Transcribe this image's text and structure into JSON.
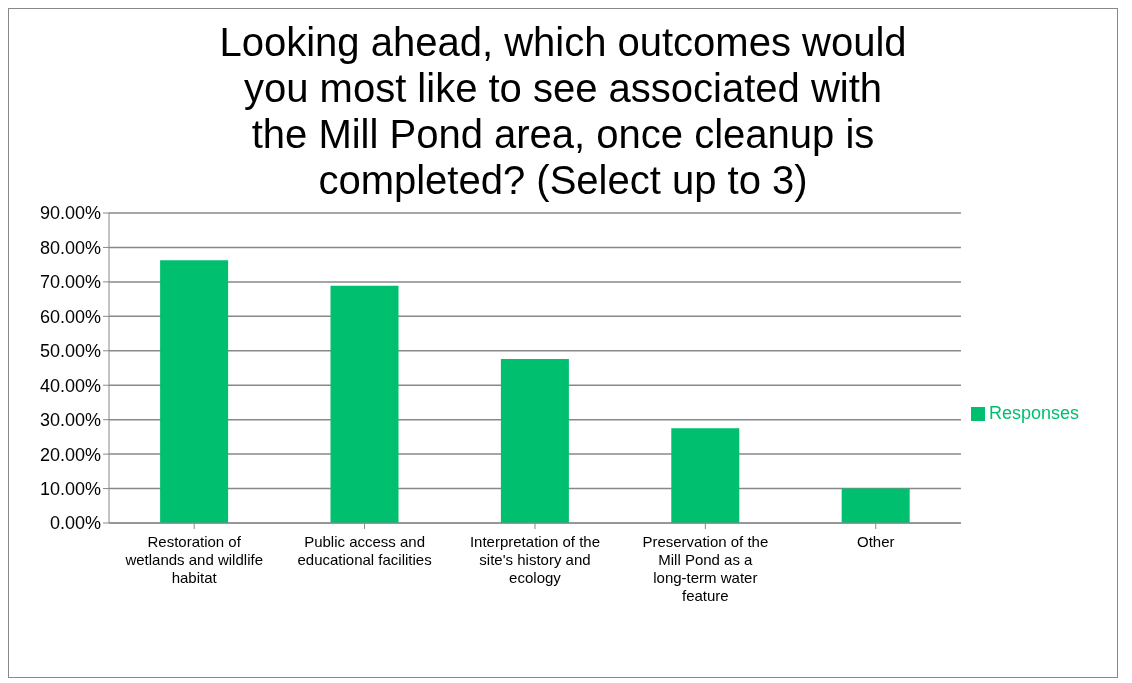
{
  "chart_data": {
    "type": "bar",
    "title": "Looking ahead, which outcomes would you most like to see associated with the Mill Pond area, once cleanup is completed? (Select up to 3)",
    "categories": [
      "Restoration of wetlands and wildlife habitat",
      "Public access and educational facilities",
      "Interpretation of the site's history and ecology",
      "Preservation of the Mill Pond as a long-term water feature",
      "Other"
    ],
    "series": [
      {
        "name": "Responses",
        "color": "#00bf6f",
        "values": [
          76.3,
          68.9,
          47.6,
          27.5,
          10.0
        ]
      }
    ],
    "ylim": [
      0,
      90
    ],
    "yticks": [
      {
        "value": 0,
        "label": "0.00%"
      },
      {
        "value": 10,
        "label": "10.00%"
      },
      {
        "value": 20,
        "label": "20.00%"
      },
      {
        "value": 30,
        "label": "30.00%"
      },
      {
        "value": 40,
        "label": "40.00%"
      },
      {
        "value": 50,
        "label": "50.00%"
      },
      {
        "value": 60,
        "label": "60.00%"
      },
      {
        "value": 70,
        "label": "70.00%"
      },
      {
        "value": 80,
        "label": "80.00%"
      },
      {
        "value": 90,
        "label": "90.00%"
      }
    ],
    "grid": "y",
    "legend": "right"
  }
}
